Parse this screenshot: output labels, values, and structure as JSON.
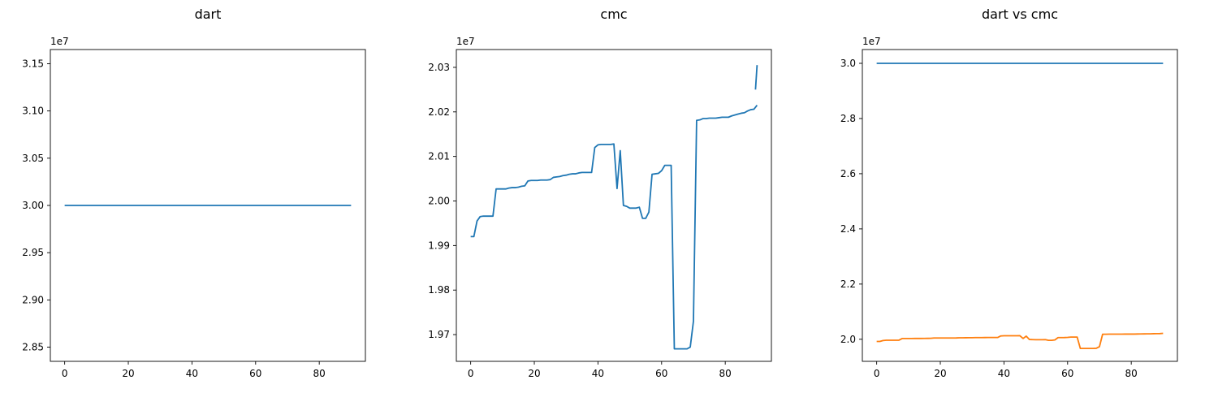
{
  "figure": {
    "background": "#ffffff"
  },
  "chart_data": [
    {
      "type": "line",
      "title": "dart",
      "xlabel": "",
      "ylabel": "",
      "offset_text": "1e7",
      "xlim": [
        -4.5,
        94.5
      ],
      "ylim": [
        28350000,
        31650000
      ],
      "x_ticks": [
        0,
        20,
        40,
        60,
        80
      ],
      "y_ticks": [
        28500000,
        29000000,
        29500000,
        30000000,
        30500000,
        31000000,
        31500000
      ],
      "y_tick_labels": [
        "2.85",
        "2.90",
        "2.95",
        "3.00",
        "3.05",
        "3.10",
        "3.15"
      ],
      "series": [
        {
          "color": "#1f77b4",
          "x": [
            0,
            90
          ],
          "y": [
            30000000,
            30000000
          ]
        }
      ]
    },
    {
      "type": "line",
      "title": "cmc",
      "xlabel": "",
      "ylabel": "",
      "offset_text": "1e7",
      "xlim": [
        -4.5,
        94.5
      ],
      "ylim": [
        19640000,
        20340000
      ],
      "x_ticks": [
        0,
        20,
        40,
        60,
        80
      ],
      "y_ticks": [
        19700000,
        19800000,
        19900000,
        20000000,
        20100000,
        20200000,
        20300000
      ],
      "y_tick_labels": [
        "1.97",
        "1.98",
        "1.99",
        "2.00",
        "2.01",
        "2.02",
        "2.03"
      ],
      "series": [
        {
          "color": "#1f77b4",
          "x": [
            0,
            1,
            2,
            3,
            4,
            5,
            6,
            7,
            8,
            9,
            10,
            11,
            12,
            13,
            14,
            15,
            16,
            17,
            18,
            19,
            20,
            21,
            22,
            23,
            24,
            25,
            26,
            27,
            28,
            29,
            30,
            31,
            32,
            33,
            34,
            35,
            36,
            37,
            38,
            39,
            40,
            41,
            42,
            43,
            44,
            45,
            46,
            47,
            48,
            49,
            50,
            51,
            52,
            53,
            54,
            55,
            56,
            57,
            58,
            59,
            60,
            61,
            62,
            63,
            64,
            65,
            66,
            67,
            68,
            69,
            70,
            71,
            72,
            73,
            74,
            75,
            76,
            77,
            78,
            79,
            80,
            81,
            82,
            83,
            84,
            85,
            86,
            87,
            88,
            89,
            90
          ],
          "y": [
            19920000,
            19920000,
            19955000,
            19965000,
            19966000,
            19966000,
            19966000,
            19966000,
            20027000,
            20027000,
            20027000,
            20027000,
            20029000,
            20030000,
            20030000,
            20031000,
            20033000,
            20034000,
            20045000,
            20046000,
            20046000,
            20046000,
            20047000,
            20047000,
            20047000,
            20048000,
            20053000,
            20054000,
            20055000,
            20057000,
            20058000,
            20060000,
            20061000,
            20061000,
            20063000,
            20064000,
            20064000,
            20064000,
            20064000,
            20120000,
            20126000,
            20127000,
            20127000,
            20127000,
            20127000,
            20128000,
            20028000,
            20113000,
            19990000,
            19988000,
            19984000,
            19984000,
            19984000,
            19986000,
            19961000,
            19961000,
            19975000,
            20060000,
            20061000,
            20062000,
            20068000,
            20080000,
            20080000,
            20080000,
            19668000,
            19668000,
            19668000,
            19668000,
            19668000,
            19672000,
            19730000,
            20181000,
            20182000,
            20185000,
            20185000,
            20186000,
            20186000,
            20186000,
            20187000,
            20188000,
            20188000,
            20188000,
            20191000,
            20193000,
            20195000,
            20197000,
            20198000,
            20202000,
            20205000,
            20206000,
            20215000
          ]
        },
        {
          "color": "#1f77b4",
          "x": [
            89.5,
            90
          ],
          "y": [
            20250000,
            20305000
          ]
        }
      ]
    },
    {
      "type": "line",
      "title": "dart vs cmc",
      "xlabel": "",
      "ylabel": "",
      "offset_text": "1e7",
      "xlim": [
        -4.5,
        94.5
      ],
      "ylim": [
        19200000,
        30500000
      ],
      "x_ticks": [
        0,
        20,
        40,
        60,
        80
      ],
      "y_ticks": [
        20000000,
        22000000,
        24000000,
        26000000,
        28000000,
        30000000
      ],
      "y_tick_labels": [
        "2.0",
        "2.2",
        "2.4",
        "2.6",
        "2.8",
        "3.0"
      ],
      "series": [
        {
          "color": "#1f77b4",
          "x": [
            0,
            90
          ],
          "y": [
            30000000,
            30000000
          ]
        },
        {
          "color": "#ff7f0e",
          "x": [
            0,
            1,
            2,
            3,
            4,
            5,
            6,
            7,
            8,
            9,
            10,
            11,
            12,
            13,
            14,
            15,
            16,
            17,
            18,
            19,
            20,
            21,
            22,
            23,
            24,
            25,
            26,
            27,
            28,
            29,
            30,
            31,
            32,
            33,
            34,
            35,
            36,
            37,
            38,
            39,
            40,
            41,
            42,
            43,
            44,
            45,
            46,
            47,
            48,
            49,
            50,
            51,
            52,
            53,
            54,
            55,
            56,
            57,
            58,
            59,
            60,
            61,
            62,
            63,
            64,
            65,
            66,
            67,
            68,
            69,
            70,
            71,
            72,
            73,
            74,
            75,
            76,
            77,
            78,
            79,
            80,
            81,
            82,
            83,
            84,
            85,
            86,
            87,
            88,
            89,
            90
          ],
          "y": [
            19920000,
            19920000,
            19955000,
            19965000,
            19966000,
            19966000,
            19966000,
            19966000,
            20027000,
            20027000,
            20027000,
            20027000,
            20029000,
            20030000,
            20030000,
            20031000,
            20033000,
            20034000,
            20045000,
            20046000,
            20046000,
            20046000,
            20047000,
            20047000,
            20047000,
            20048000,
            20053000,
            20054000,
            20055000,
            20057000,
            20058000,
            20060000,
            20061000,
            20061000,
            20063000,
            20064000,
            20064000,
            20064000,
            20064000,
            20120000,
            20126000,
            20127000,
            20127000,
            20127000,
            20127000,
            20128000,
            20028000,
            20113000,
            19990000,
            19988000,
            19984000,
            19984000,
            19984000,
            19986000,
            19961000,
            19961000,
            19975000,
            20060000,
            20061000,
            20062000,
            20068000,
            20080000,
            20080000,
            20080000,
            19668000,
            19668000,
            19668000,
            19668000,
            19668000,
            19672000,
            19730000,
            20181000,
            20182000,
            20185000,
            20185000,
            20186000,
            20186000,
            20186000,
            20187000,
            20188000,
            20188000,
            20188000,
            20191000,
            20193000,
            20195000,
            20197000,
            20198000,
            20202000,
            20205000,
            20206000,
            20215000
          ]
        }
      ]
    }
  ]
}
